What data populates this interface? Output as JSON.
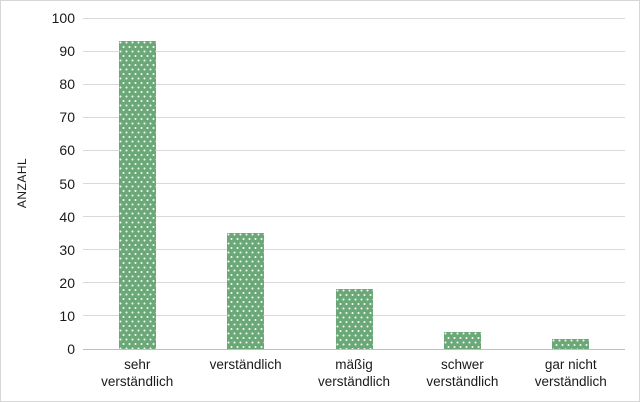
{
  "chart_data": {
    "type": "bar",
    "title": "",
    "ylabel": "ANZAHL",
    "xlabel": "",
    "categories": [
      "sehr verständlich",
      "verständlich",
      "mäßig verständlich",
      "schwer verständlich",
      "gar nicht verständlich"
    ],
    "category_label_lines": [
      [
        "sehr",
        "verständlich"
      ],
      [
        "verständlich"
      ],
      [
        "mäßig",
        "verständlich"
      ],
      [
        "schwer",
        "verständlich"
      ],
      [
        "gar nicht",
        "verständlich"
      ]
    ],
    "values": [
      93,
      35,
      18,
      5,
      3
    ],
    "ylim": [
      0,
      100
    ],
    "ytick_step": 10,
    "grid": "horizontal",
    "legend": "none",
    "colors": {
      "bar_fill": "#6aa977",
      "bar_pattern_dots": "#ffffff",
      "gridline": "#d9d9d9",
      "axis_line": "#bfbfbf",
      "text": "#1a1a1a",
      "frame_border": "#d6d6d6",
      "background": "#ffffff"
    }
  }
}
